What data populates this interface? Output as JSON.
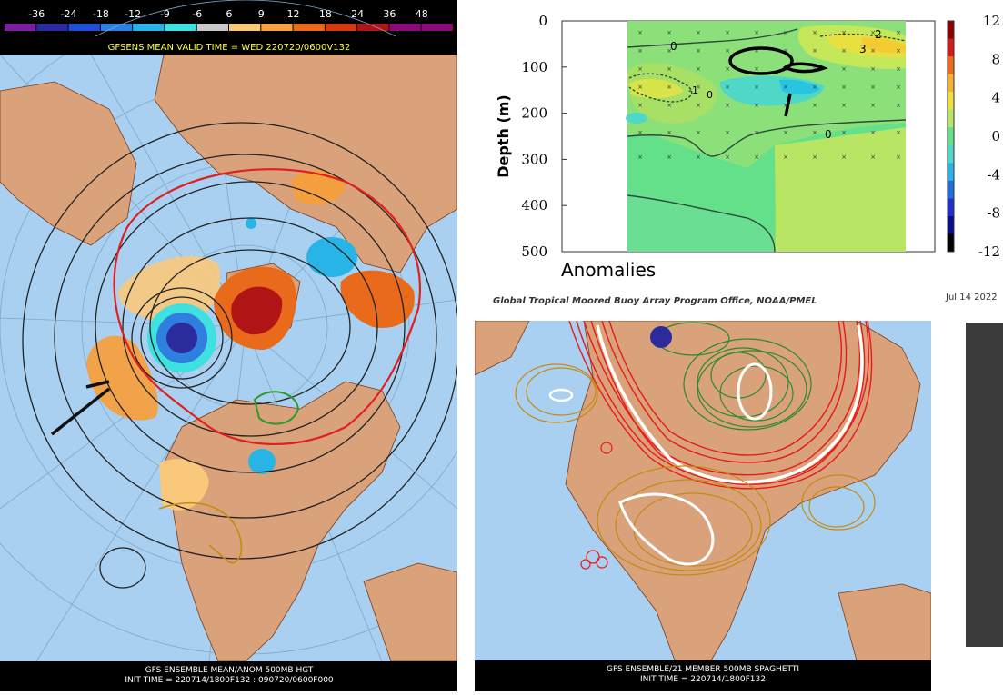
{
  "left": {
    "legend_values": [
      "-36",
      "-24",
      "-18",
      "-12",
      "-9",
      "-6",
      "6",
      "9",
      "12",
      "18",
      "24",
      "36",
      "48"
    ],
    "legend_colors": [
      "#7a1f9e",
      "#2b2b9e",
      "#1f4fd6",
      "#2f7fe0",
      "#28b4e6",
      "#3fe0e0",
      "#c9c9c9",
      "#f9c87a",
      "#f5a040",
      "#e86a1a",
      "#d63a12",
      "#b01414",
      "#8a0a7a"
    ],
    "header": "GFSENS MEAN VALID TIME = WED 220720/0600V132",
    "footer_line1": "GFS ENSEMBLE MEAN/ANOM 500MB HGT",
    "footer_line2": "INIT TIME = 220714/1800F132 : 090720/0600F000"
  },
  "right": {
    "footer_line1": "GFS ENSEMBLE/21 MEMBER 500MB SPAGHETTI",
    "footer_line2": "INIT TIME = 220714/1800F132"
  },
  "buoy": {
    "y_axis_label": "Depth (m)",
    "y_ticks": [
      "0",
      "100",
      "200",
      "300",
      "400",
      "500"
    ],
    "colorbar_ticks": [
      "12",
      "8",
      "4",
      "0",
      "-4",
      "-8",
      "-12"
    ],
    "panel_label": "Anomalies",
    "credit": "Global Tropical Moored Buoy Array Program Office, NOAA/PMEL",
    "date": "Jul 14 2022",
    "contour_labels": [
      "0",
      "2",
      "3",
      "0",
      "-1",
      "0"
    ]
  }
}
